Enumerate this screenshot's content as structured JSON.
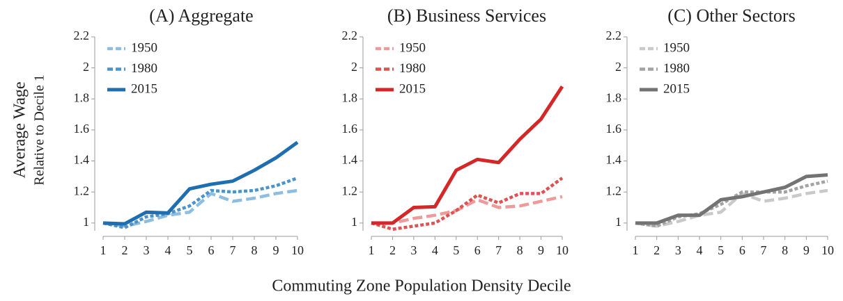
{
  "chart_data": [
    {
      "type": "line",
      "title": "(A) Aggregate",
      "ylabel": "Average Wage",
      "ysublabel": "Relative to Decile 1",
      "x": [
        1,
        2,
        3,
        4,
        5,
        6,
        7,
        8,
        9,
        10
      ],
      "xlim": [
        1,
        10
      ],
      "xticks": [
        1,
        2,
        3,
        4,
        5,
        6,
        7,
        8,
        9,
        10
      ],
      "ylim": [
        0.95,
        2.2
      ],
      "yticks": [
        1,
        1.2,
        1.4,
        1.6,
        1.8,
        2,
        2.2
      ],
      "legend": "upper left",
      "series": [
        {
          "name": "1950",
          "color": "#8dbde0",
          "style": "dashed",
          "values": [
            1,
            0.98,
            1.01,
            1.05,
            1.07,
            1.19,
            1.14,
            1.16,
            1.19,
            1.21
          ]
        },
        {
          "name": "1980",
          "color": "#4b93c9",
          "style": "dotted",
          "values": [
            1,
            0.97,
            1.04,
            1.06,
            1.11,
            1.21,
            1.2,
            1.21,
            1.24,
            1.29
          ]
        },
        {
          "name": "2015",
          "color": "#1f6fb0",
          "style": "solid",
          "values": [
            1,
            0.995,
            1.07,
            1.065,
            1.22,
            1.25,
            1.27,
            1.34,
            1.42,
            1.52
          ]
        }
      ]
    },
    {
      "type": "line",
      "title": "(B) Business Services",
      "xlabel": "Commuting Zone Population Density Decile",
      "x": [
        1,
        2,
        3,
        4,
        5,
        6,
        7,
        8,
        9,
        10
      ],
      "xlim": [
        1,
        10
      ],
      "xticks": [
        1,
        2,
        3,
        4,
        5,
        6,
        7,
        8,
        9,
        10
      ],
      "ylim": [
        0.95,
        2.2
      ],
      "yticks": [
        1,
        1.2,
        1.4,
        1.6,
        1.8,
        2,
        2.2
      ],
      "legend": "upper left",
      "series": [
        {
          "name": "1950",
          "color": "#ee9a9a",
          "style": "dashed",
          "values": [
            1,
            1.0,
            1.03,
            1.05,
            1.08,
            1.15,
            1.1,
            1.11,
            1.14,
            1.17
          ]
        },
        {
          "name": "1980",
          "color": "#e05252",
          "style": "dotted",
          "values": [
            1,
            0.96,
            0.98,
            1.0,
            1.08,
            1.18,
            1.13,
            1.19,
            1.19,
            1.29
          ]
        },
        {
          "name": "2015",
          "color": "#d62728",
          "style": "solid",
          "values": [
            1,
            1.0,
            1.1,
            1.105,
            1.34,
            1.41,
            1.39,
            1.54,
            1.67,
            1.88
          ]
        }
      ]
    },
    {
      "type": "line",
      "title": "(C) Other Sectors",
      "x": [
        1,
        2,
        3,
        4,
        5,
        6,
        7,
        8,
        9,
        10
      ],
      "xlim": [
        1,
        10
      ],
      "xticks": [
        1,
        2,
        3,
        4,
        5,
        6,
        7,
        8,
        9,
        10
      ],
      "ylim": [
        0.95,
        2.2
      ],
      "yticks": [
        1,
        1.2,
        1.4,
        1.6,
        1.8,
        2,
        2.2
      ],
      "legend": "upper left",
      "series": [
        {
          "name": "1950",
          "color": "#c9c9c9",
          "style": "dashed",
          "values": [
            1,
            0.98,
            1.01,
            1.05,
            1.07,
            1.19,
            1.14,
            1.16,
            1.19,
            1.21
          ]
        },
        {
          "name": "1980",
          "color": "#a3a3a3",
          "style": "dotted",
          "values": [
            1,
            0.98,
            1.04,
            1.06,
            1.12,
            1.2,
            1.2,
            1.2,
            1.24,
            1.27
          ]
        },
        {
          "name": "2015",
          "color": "#737373",
          "style": "solid",
          "values": [
            1,
            1.0,
            1.05,
            1.05,
            1.15,
            1.17,
            1.2,
            1.23,
            1.3,
            1.31
          ]
        }
      ]
    }
  ]
}
